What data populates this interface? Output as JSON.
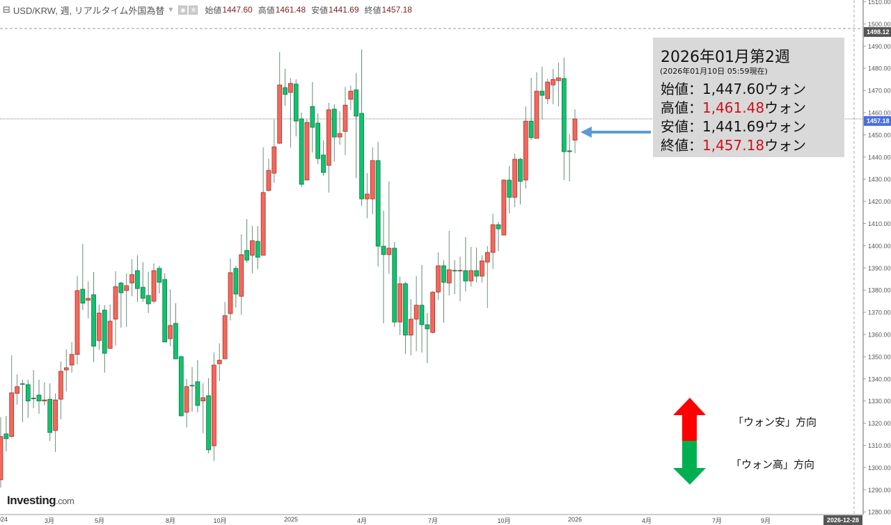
{
  "header": {
    "symbol": "USD/KRW, 週, リアルタイム外国為替",
    "open_label": "始値",
    "open": "1447.60",
    "high_label": "高値",
    "high": "1461.48",
    "low_label": "安値",
    "low": "1441.69",
    "close_label": "終値",
    "close": "1457.18"
  },
  "info_box": {
    "title": "2026年01月第2週",
    "subtitle": "(2026年01月10日 05:59現在)",
    "rows": [
      {
        "label": "始値：",
        "value": "1,447.60",
        "unit": "ウォン"
      },
      {
        "label": "高値：",
        "value": "1,461.48",
        "unit": "ウォン"
      },
      {
        "label": "安値：",
        "value": "1,441.69",
        "unit": "ウォン"
      },
      {
        "label": "終値：",
        "value": "1,457.18",
        "unit": "ウォン"
      }
    ]
  },
  "direction_legend": {
    "up_label": "「ウォン安」方向",
    "down_label": "「ウォン高」方向",
    "up_color": "#ff0000",
    "down_color": "#00b050"
  },
  "logo": {
    "main": "Investing",
    "suffix": ".com"
  },
  "crosshair": {
    "price_label": "1498.12",
    "date_label": "2026-12-28"
  },
  "last_price_label": "1457.18",
  "chart_data": {
    "type": "candlestick",
    "period": "weekly",
    "up_color": "#f7665a",
    "down_color": "#0dc46e",
    "ylim": [
      1280,
      1510
    ],
    "yticks": [
      "1280.00",
      "1290.00",
      "1300.00",
      "1310.00",
      "1320.00",
      "1330.00",
      "1340.00",
      "1350.00",
      "1360.00",
      "1370.00",
      "1380.00",
      "1390.00",
      "1400.00",
      "1410.00",
      "1420.00",
      "1430.00",
      "1440.00",
      "1450.00",
      "1460.00",
      "1470.00",
      "1480.00",
      "1490.00",
      "1500.00",
      "1510.00"
    ],
    "xtick_labels": [
      "2024",
      "3月",
      "5月",
      "8月",
      "10月",
      "2025",
      "4月",
      "7月",
      "10月",
      "2026",
      "4月",
      "7月",
      "9月"
    ],
    "columns": [
      "week",
      "open",
      "high",
      "low",
      "close"
    ],
    "candles": [
      [
        "2023-12-31",
        1294.5,
        1322.7,
        1291,
        1314
      ],
      [
        "2024-01-07",
        1315.2,
        1323.3,
        1307.3,
        1313
      ],
      [
        "2024-01-14",
        1314,
        1350.6,
        1313.5,
        1333.7
      ],
      [
        "2024-01-21",
        1333.4,
        1342,
        1328.3,
        1336.5
      ],
      [
        "2024-01-28",
        1337.8,
        1339.6,
        1320.5,
        1337.6
      ],
      [
        "2024-02-04",
        1337.4,
        1339.6,
        1322.4,
        1330
      ],
      [
        "2024-02-11",
        1331.3,
        1344,
        1326.8,
        1331.1
      ],
      [
        "2024-02-18",
        1332.7,
        1339.6,
        1324.3,
        1330
      ],
      [
        "2024-02-25",
        1330,
        1338.4,
        1328,
        1330.5
      ],
      [
        "2024-03-03",
        1330.8,
        1338,
        1312,
        1315.8
      ],
      [
        "2024-03-10",
        1316.7,
        1333.4,
        1307,
        1330.5
      ],
      [
        "2024-03-17",
        1330.8,
        1347.8,
        1321.8,
        1343.4
      ],
      [
        "2024-03-24",
        1344,
        1353.4,
        1334.3,
        1345
      ],
      [
        "2024-03-31",
        1346.2,
        1356.6,
        1342.8,
        1351
      ],
      [
        "2024-04-07",
        1351,
        1386.3,
        1346.5,
        1379.8
      ],
      [
        "2024-04-14",
        1380.4,
        1400.8,
        1371,
        1374.1
      ],
      [
        "2024-04-21",
        1375.4,
        1384,
        1367.2,
        1376.3
      ],
      [
        "2024-04-28",
        1377.9,
        1388.2,
        1347.5,
        1354.7
      ],
      [
        "2024-05-05",
        1357.2,
        1373.5,
        1353.1,
        1369.7
      ],
      [
        "2024-05-12",
        1371,
        1373.2,
        1342.8,
        1351.5
      ],
      [
        "2024-05-19",
        1353.7,
        1373.5,
        1353.5,
        1366
      ],
      [
        "2024-05-26",
        1366.9,
        1388.5,
        1355,
        1381.6
      ],
      [
        "2024-06-02",
        1383.2,
        1383.8,
        1363,
        1378.8
      ],
      [
        "2024-06-09",
        1379.8,
        1387.6,
        1363.4,
        1382
      ],
      [
        "2024-06-16",
        1383.2,
        1393.9,
        1377.2,
        1387
      ],
      [
        "2024-06-23",
        1388.8,
        1395.7,
        1374.7,
        1380.7
      ],
      [
        "2024-06-30",
        1381.3,
        1392.6,
        1374.7,
        1376.3
      ],
      [
        "2024-07-07",
        1377.6,
        1388.2,
        1369.7,
        1373.8
      ],
      [
        "2024-07-14",
        1375,
        1392,
        1374,
        1388.8
      ],
      [
        "2024-07-21",
        1389.8,
        1391,
        1378.5,
        1383.5
      ],
      [
        "2024-07-28",
        1384.8,
        1387.6,
        1356.5,
        1356.6
      ],
      [
        "2024-08-04",
        1358.1,
        1380.4,
        1354.7,
        1364.1
      ],
      [
        "2024-08-11",
        1365,
        1374.1,
        1349,
        1349
      ],
      [
        "2024-08-18",
        1350,
        1350.5,
        1323.3,
        1323.3
      ],
      [
        "2024-08-25",
        1324.9,
        1340,
        1318,
        1336.5
      ],
      [
        "2024-09-01",
        1337.1,
        1345.3,
        1325.2,
        1336.9
      ],
      [
        "2024-09-08",
        1338.7,
        1348.4,
        1324.9,
        1328
      ],
      [
        "2024-09-15",
        1330,
        1338,
        1315.5,
        1331.5
      ],
      [
        "2024-09-22",
        1332.4,
        1340.3,
        1306.4,
        1308
      ],
      [
        "2024-09-29",
        1309.8,
        1351.8,
        1303,
        1346.2
      ],
      [
        "2024-10-06",
        1346.8,
        1356,
        1339,
        1348.4
      ],
      [
        "2024-10-13",
        1349,
        1374.7,
        1349,
        1368.5
      ],
      [
        "2024-10-20",
        1369.4,
        1394.2,
        1366.3,
        1387.9
      ],
      [
        "2024-10-27",
        1389.8,
        1391,
        1372.2,
        1378.2
      ],
      [
        "2024-11-03",
        1377.2,
        1405.1,
        1368.8,
        1396
      ],
      [
        "2024-11-10",
        1397.9,
        1412,
        1392.3,
        1393.5
      ],
      [
        "2024-11-17",
        1395.7,
        1408.9,
        1387.6,
        1402.3
      ],
      [
        "2024-11-24",
        1402,
        1408.9,
        1389.5,
        1394.8
      ],
      [
        "2024-12-01",
        1395.7,
        1444.3,
        1395.7,
        1424
      ],
      [
        "2024-12-08",
        1424.9,
        1439.3,
        1424.5,
        1434
      ],
      [
        "2024-12-15",
        1432.7,
        1456.9,
        1428.3,
        1444.6
      ],
      [
        "2024-12-22",
        1446.2,
        1487.3,
        1445.9,
        1472.5
      ],
      [
        "2024-12-29",
        1471.3,
        1479.7,
        1463.1,
        1468.2
      ],
      [
        "2025-01-05",
        1469.1,
        1475.6,
        1444.3,
        1473.2
      ],
      [
        "2025-01-12",
        1472.9,
        1475,
        1449.3,
        1456.2
      ],
      [
        "2025-01-19",
        1457.2,
        1460,
        1426.5,
        1427.7
      ],
      [
        "2025-01-26",
        1429.6,
        1457,
        1429.6,
        1455.6
      ],
      [
        "2025-02-02",
        1462.8,
        1473.8,
        1442,
        1453.4
      ],
      [
        "2025-02-09",
        1455.3,
        1459.7,
        1436.8,
        1439.3
      ],
      [
        "2025-02-16",
        1440.9,
        1447.5,
        1431.5,
        1433
      ],
      [
        "2025-02-23",
        1436.2,
        1464.4,
        1424,
        1461.3
      ],
      [
        "2025-03-02",
        1461.6,
        1463.8,
        1438,
        1449
      ],
      [
        "2025-03-09",
        1449,
        1460.6,
        1445.6,
        1450.6
      ],
      [
        "2025-03-16",
        1451.5,
        1471.6,
        1440.9,
        1463.4
      ],
      [
        "2025-03-23",
        1466,
        1472.2,
        1461.3,
        1469.7
      ],
      [
        "2025-03-30",
        1470.3,
        1477.9,
        1430.5,
        1458.4
      ],
      [
        "2025-04-06",
        1459.7,
        1488.5,
        1418,
        1421.1
      ],
      [
        "2025-04-13",
        1421.1,
        1432.7,
        1412.4,
        1423.3
      ],
      [
        "2025-04-20",
        1421.1,
        1444.3,
        1414.2,
        1438.4
      ],
      [
        "2025-04-27",
        1438.4,
        1446.8,
        1390.7,
        1399.8
      ],
      [
        "2025-05-04",
        1399.8,
        1415.8,
        1365,
        1396
      ],
      [
        "2025-05-11",
        1396,
        1429,
        1387.3,
        1398.9
      ],
      [
        "2025-05-18",
        1398.9,
        1401.7,
        1363.4,
        1365.6
      ],
      [
        "2025-05-25",
        1365.6,
        1386,
        1359.7,
        1382.9
      ],
      [
        "2025-06-01",
        1382.9,
        1383.8,
        1351.2,
        1359.7
      ],
      [
        "2025-06-08",
        1359.7,
        1376,
        1350.6,
        1366.9
      ],
      [
        "2025-06-15",
        1366.9,
        1386.3,
        1352.5,
        1373.2
      ],
      [
        "2025-06-22",
        1373.2,
        1391.3,
        1351.8,
        1364.4
      ],
      [
        "2025-06-29",
        1364.4,
        1369.7,
        1347.1,
        1362.5
      ],
      [
        "2025-07-06",
        1360.9,
        1379.5,
        1360.5,
        1379.1
      ],
      [
        "2025-07-13",
        1379.1,
        1397,
        1375.7,
        1391
      ],
      [
        "2025-07-20",
        1391,
        1393.5,
        1365.3,
        1383.5
      ],
      [
        "2025-07-27",
        1383.2,
        1406.7,
        1377.6,
        1389.2
      ],
      [
        "2025-08-03",
        1388.9,
        1393.5,
        1378.2,
        1388.7
      ],
      [
        "2025-08-10",
        1388.7,
        1395.1,
        1375,
        1388.9
      ],
      [
        "2025-08-17",
        1388.8,
        1403.9,
        1379.4,
        1384.1
      ],
      [
        "2025-08-24",
        1384.1,
        1399.5,
        1381.6,
        1388.8
      ],
      [
        "2025-08-31",
        1388.8,
        1399.2,
        1383.5,
        1386.3
      ],
      [
        "2025-09-07",
        1386.3,
        1395.7,
        1383.5,
        1393.2
      ],
      [
        "2025-09-14",
        1392.6,
        1399.8,
        1371.9,
        1397
      ],
      [
        "2025-09-21",
        1397,
        1414.5,
        1389.5,
        1409.5
      ],
      [
        "2025-09-28",
        1409.5,
        1410.8,
        1397.6,
        1407.6
      ],
      [
        "2025-10-05",
        1404.8,
        1430,
        1404.8,
        1429.6
      ],
      [
        "2025-10-12",
        1429.6,
        1435.9,
        1414.5,
        1421.8
      ],
      [
        "2025-10-19",
        1421.8,
        1441.5,
        1417.4,
        1439
      ],
      [
        "2025-10-26",
        1439,
        1439.6,
        1418.6,
        1429
      ],
      [
        "2025-11-02",
        1429.6,
        1462.8,
        1425.8,
        1456.2
      ],
      [
        "2025-11-09",
        1456.2,
        1475.7,
        1447.8,
        1448.7
      ],
      [
        "2025-11-16",
        1448.4,
        1478.2,
        1448.4,
        1469.7
      ],
      [
        "2025-11-23",
        1469.7,
        1480.7,
        1456.9,
        1467.8
      ],
      [
        "2025-11-30",
        1466.3,
        1475.4,
        1463.8,
        1473.8
      ],
      [
        "2025-12-07",
        1472.5,
        1479.7,
        1463.8,
        1475
      ],
      [
        "2025-12-14",
        1474.4,
        1482.6,
        1462.8,
        1475.7
      ],
      [
        "2025-12-21",
        1475.4,
        1484.8,
        1429.6,
        1442.4
      ],
      [
        "2025-12-28",
        1442.8,
        1450.3,
        1429,
        1442.4
      ],
      [
        "2026-01-04",
        1447.6,
        1461.48,
        1441.69,
        1457.18
      ]
    ]
  }
}
